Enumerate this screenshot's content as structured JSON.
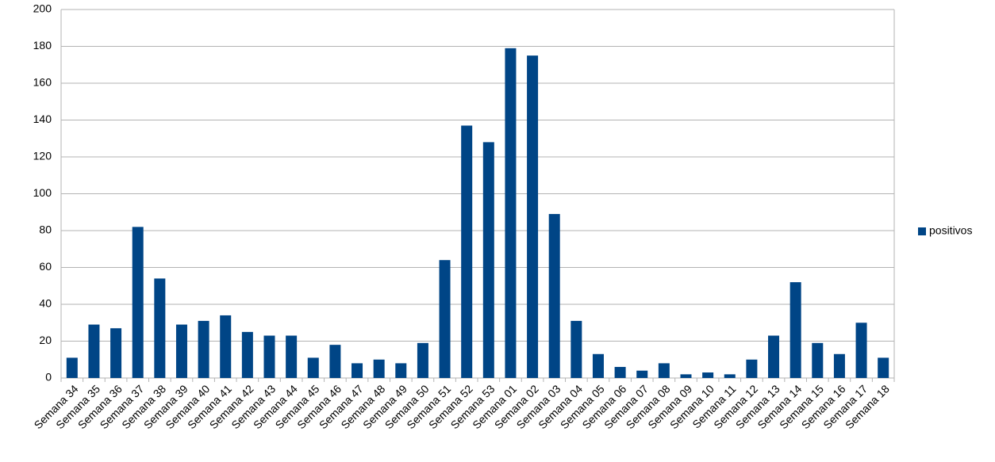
{
  "chart_data": {
    "type": "bar",
    "categories": [
      "Semana 34",
      "Semana 35",
      "Semana 36",
      "Semana 37",
      "Semana 38",
      "Semana 39",
      "Semana 40",
      "Semana 41",
      "Semana 42",
      "Semana 43",
      "Semana 44",
      "Semana 45",
      "Semana 46",
      "Semana 47",
      "Semana 48",
      "Semana 49",
      "Semana 50",
      "Semana 51",
      "Semana 52",
      "Semana 53",
      "Semana 01",
      "Semana 02",
      "Semana 03",
      "Semana 04",
      "Semana 05",
      "Semana 06",
      "Semana 07",
      "Semana 08",
      "Semana 09",
      "Semana 10",
      "Semana 11",
      "Semana 12",
      "Semana 13",
      "Semana 14",
      "Semana 15",
      "Semana 16",
      "Semana 17",
      "Semana 18"
    ],
    "series": [
      {
        "name": "positivos",
        "color": "#004586",
        "values": [
          11,
          29,
          27,
          82,
          54,
          29,
          31,
          34,
          25,
          23,
          23,
          11,
          18,
          8,
          10,
          8,
          19,
          64,
          137,
          128,
          179,
          175,
          89,
          31,
          13,
          6,
          4,
          8,
          2,
          3,
          2,
          10,
          23,
          52,
          19,
          13,
          30,
          11
        ]
      }
    ],
    "ylim": [
      0,
      200
    ],
    "yticks": [
      0,
      20,
      40,
      60,
      80,
      100,
      120,
      140,
      160,
      180,
      200
    ],
    "grid": true,
    "legend": "right"
  }
}
